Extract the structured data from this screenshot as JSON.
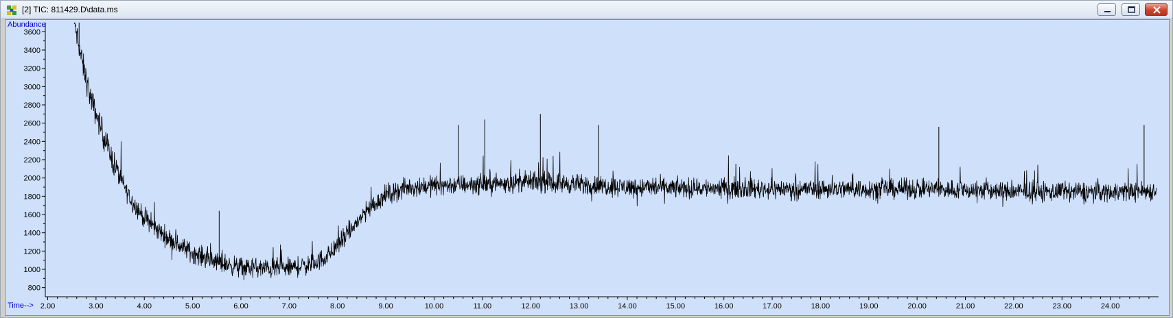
{
  "window": {
    "title": "[2] TIC: 811429.D\\data.ms",
    "icon": "chromatogram-app-icon",
    "buttons": [
      "minimize",
      "restore",
      "close"
    ]
  },
  "colors": {
    "plot_background": "#cfe0fb",
    "trace": "#000000",
    "axis_caption": "#0000d0"
  },
  "chart_data": {
    "type": "line",
    "ylabel": "Abundance",
    "xlabel": "Time-->",
    "xlim": [
      1.95,
      25.0
    ],
    "ylim": [
      700,
      3700
    ],
    "x_ticks": [
      "2.00",
      "3.00",
      "4.00",
      "5.00",
      "6.00",
      "7.00",
      "8.00",
      "9.00",
      "10.00",
      "11.00",
      "12.00",
      "13.00",
      "14.00",
      "15.00",
      "16.00",
      "17.00",
      "18.00",
      "19.00",
      "20.00",
      "21.00",
      "22.00",
      "23.00",
      "24.00"
    ],
    "y_ticks": [
      "800",
      "1000",
      "1200",
      "1400",
      "1600",
      "1800",
      "2000",
      "2200",
      "2400",
      "2600",
      "2800",
      "3000",
      "3200",
      "3400",
      "3600"
    ],
    "series": [
      {
        "baseline": {
          "x": [
            2.55,
            2.7,
            2.9,
            3.1,
            3.3,
            3.5,
            3.7,
            4.0,
            4.3,
            4.6,
            5.0,
            5.5,
            6.0,
            6.5,
            7.0,
            7.5,
            7.8,
            8.2,
            8.6,
            9.0,
            9.5,
            10.0,
            11.0,
            12.0,
            13.0,
            14.0,
            15.0,
            16.0,
            17.0,
            18.0,
            19.0,
            20.0,
            21.0,
            22.0,
            23.0,
            24.0,
            25.0
          ],
          "y": [
            3700,
            3300,
            2850,
            2550,
            2250,
            2000,
            1780,
            1560,
            1420,
            1300,
            1180,
            1080,
            1020,
            1010,
            1010,
            1060,
            1150,
            1380,
            1640,
            1820,
            1900,
            1920,
            1930,
            1960,
            1930,
            1900,
            1890,
            1890,
            1880,
            1880,
            1880,
            1880,
            1870,
            1850,
            1850,
            1850,
            1860
          ]
        },
        "noise_amplitude_y": 160,
        "noted_peaks": [
          {
            "x": 2.65,
            "y": 3700
          },
          {
            "x": 5.55,
            "y": 1640
          },
          {
            "x": 10.5,
            "y": 2580
          },
          {
            "x": 11.05,
            "y": 2640
          },
          {
            "x": 12.2,
            "y": 2700
          },
          {
            "x": 13.4,
            "y": 2580
          },
          {
            "x": 20.45,
            "y": 2560
          },
          {
            "x": 24.7,
            "y": 2580
          }
        ]
      }
    ]
  }
}
